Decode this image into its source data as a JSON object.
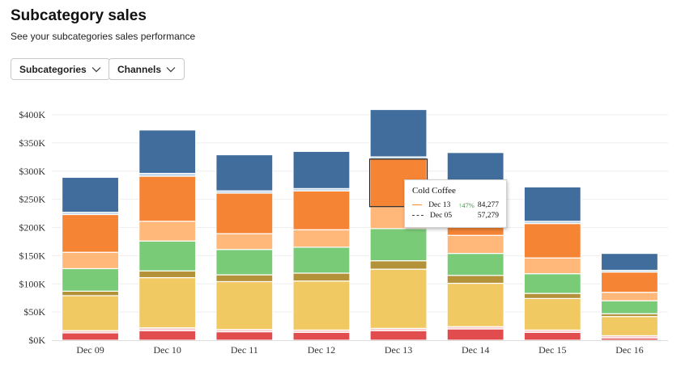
{
  "header": {
    "title": "Subcategory sales",
    "subtitle": "See your subcategories sales performance"
  },
  "filters": {
    "subcategories_label": "Subcategories",
    "channels_label": "Channels"
  },
  "colors": {
    "blue": "#416d9d",
    "orange": "#f58535",
    "light_orange": "#ffb77a",
    "green": "#7acb78",
    "olive": "#b3923a",
    "yellow": "#f0c962",
    "pink": "#f7c9c9",
    "red": "#e14d4f",
    "separator": "#ffffff",
    "light_blue_band": "#b9d3ea",
    "gridline": "#eeeeee"
  },
  "chart_data": {
    "type": "bar",
    "stacked": true,
    "title": "",
    "xlabel": "",
    "ylabel": "",
    "ylim": [
      0,
      400000
    ],
    "yticks": [
      0,
      50000,
      100000,
      150000,
      200000,
      250000,
      300000,
      350000,
      400000
    ],
    "ytick_labels": [
      "$0K",
      "$50K",
      "$100K",
      "$150K",
      "$200K",
      "$250K",
      "$300K",
      "$350K",
      "$400K"
    ],
    "categories": [
      "Dec 09",
      "Dec 10",
      "Dec 11",
      "Dec 12",
      "Dec 13",
      "Dec 14",
      "Dec 15",
      "Dec 16"
    ],
    "series": [
      {
        "name": "red",
        "color_key": "red",
        "values": [
          13000,
          17000,
          15000,
          14000,
          17000,
          20000,
          14000,
          4000
        ]
      },
      {
        "name": "pink",
        "color_key": "pink",
        "values": [
          4000,
          5000,
          4000,
          4000,
          4000,
          4000,
          4000,
          4000
        ]
      },
      {
        "name": "yellow",
        "color_key": "yellow",
        "values": [
          62000,
          89000,
          85000,
          87000,
          105000,
          77000,
          56000,
          34000
        ]
      },
      {
        "name": "olive",
        "color_key": "olive",
        "values": [
          8000,
          12000,
          12000,
          14000,
          15000,
          14000,
          9000,
          5000
        ]
      },
      {
        "name": "green",
        "color_key": "green",
        "values": [
          40000,
          53000,
          45000,
          46000,
          57000,
          39000,
          35000,
          23000
        ]
      },
      {
        "name": "light orange",
        "color_key": "light_orange",
        "values": [
          29000,
          35000,
          28000,
          31000,
          39000,
          32000,
          28000,
          15000
        ]
      },
      {
        "name": "Cold Coffee",
        "color_key": "orange",
        "values": [
          67000,
          80000,
          72000,
          69000,
          84277,
          78000,
          61000,
          36000
        ]
      },
      {
        "name": "light blue",
        "color_key": "light_blue_band",
        "values": [
          4000,
          5000,
          4000,
          4000,
          4000,
          4000,
          4000,
          3000
        ]
      },
      {
        "name": "blue",
        "color_key": "blue",
        "values": [
          62000,
          77000,
          64000,
          66000,
          84000,
          65000,
          61000,
          30000
        ]
      }
    ],
    "highlight": {
      "category_index": 4,
      "series_index": 6
    },
    "tooltip": {
      "title": "Cold Coffee",
      "current_date": "Dec 13",
      "change": "↑47%",
      "current_value": "84,277",
      "previous_date": "Dec 05",
      "previous_value": "57,279"
    }
  }
}
